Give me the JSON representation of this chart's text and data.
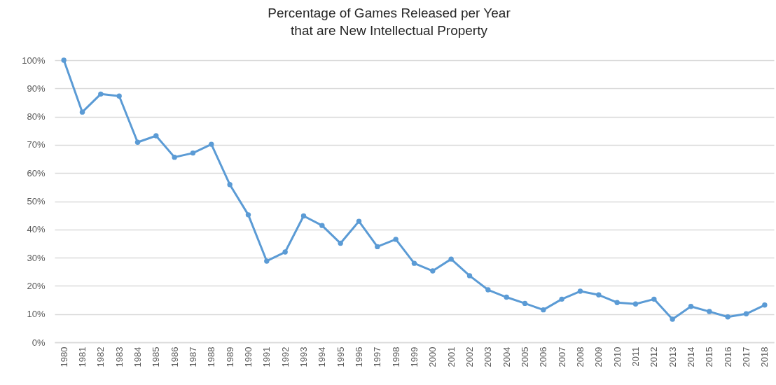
{
  "chart_data": {
    "type": "line",
    "title": "Percentage of Games Released per Year\nthat are New Intellectual Property",
    "categories": [
      "1980",
      "1981",
      "1982",
      "1983",
      "1984",
      "1985",
      "1986",
      "1987",
      "1988",
      "1989",
      "1990",
      "1991",
      "1992",
      "1993",
      "1994",
      "1995",
      "1996",
      "1997",
      "1998",
      "1999",
      "2000",
      "2001",
      "2002",
      "2003",
      "2004",
      "2005",
      "2006",
      "2007",
      "2008",
      "2009",
      "2010",
      "2011",
      "2012",
      "2013",
      "2014",
      "2015",
      "2016",
      "2017",
      "2018"
    ],
    "values": [
      100,
      81.6,
      88.0,
      87.3,
      70.9,
      73.2,
      65.6,
      67.1,
      70.2,
      55.9,
      45.2,
      28.8,
      32.0,
      44.8,
      41.4,
      35.1,
      42.9,
      33.9,
      36.5,
      28.0,
      25.3,
      29.5,
      23.6,
      18.6,
      16.0,
      13.8,
      11.5,
      15.3,
      18.1,
      16.8,
      14.1,
      13.6,
      15.3,
      8.2,
      12.7,
      10.9,
      9.0,
      10.1,
      13.2
    ],
    "color": "#5b9bd5",
    "ylim": [
      0,
      100
    ],
    "yticks": [
      {
        "value": 0,
        "label": "0%"
      },
      {
        "value": 10,
        "label": "10%"
      },
      {
        "value": 20,
        "label": "20%"
      },
      {
        "value": 30,
        "label": "30%"
      },
      {
        "value": 40,
        "label": "40%"
      },
      {
        "value": 50,
        "label": "50%"
      },
      {
        "value": 60,
        "label": "60%"
      },
      {
        "value": 70,
        "label": "70%"
      },
      {
        "value": 80,
        "label": "80%"
      },
      {
        "value": 90,
        "label": "90%"
      },
      {
        "value": 100,
        "label": "100%"
      }
    ],
    "grid": "y",
    "marker": "circle",
    "line_style": "solid"
  }
}
